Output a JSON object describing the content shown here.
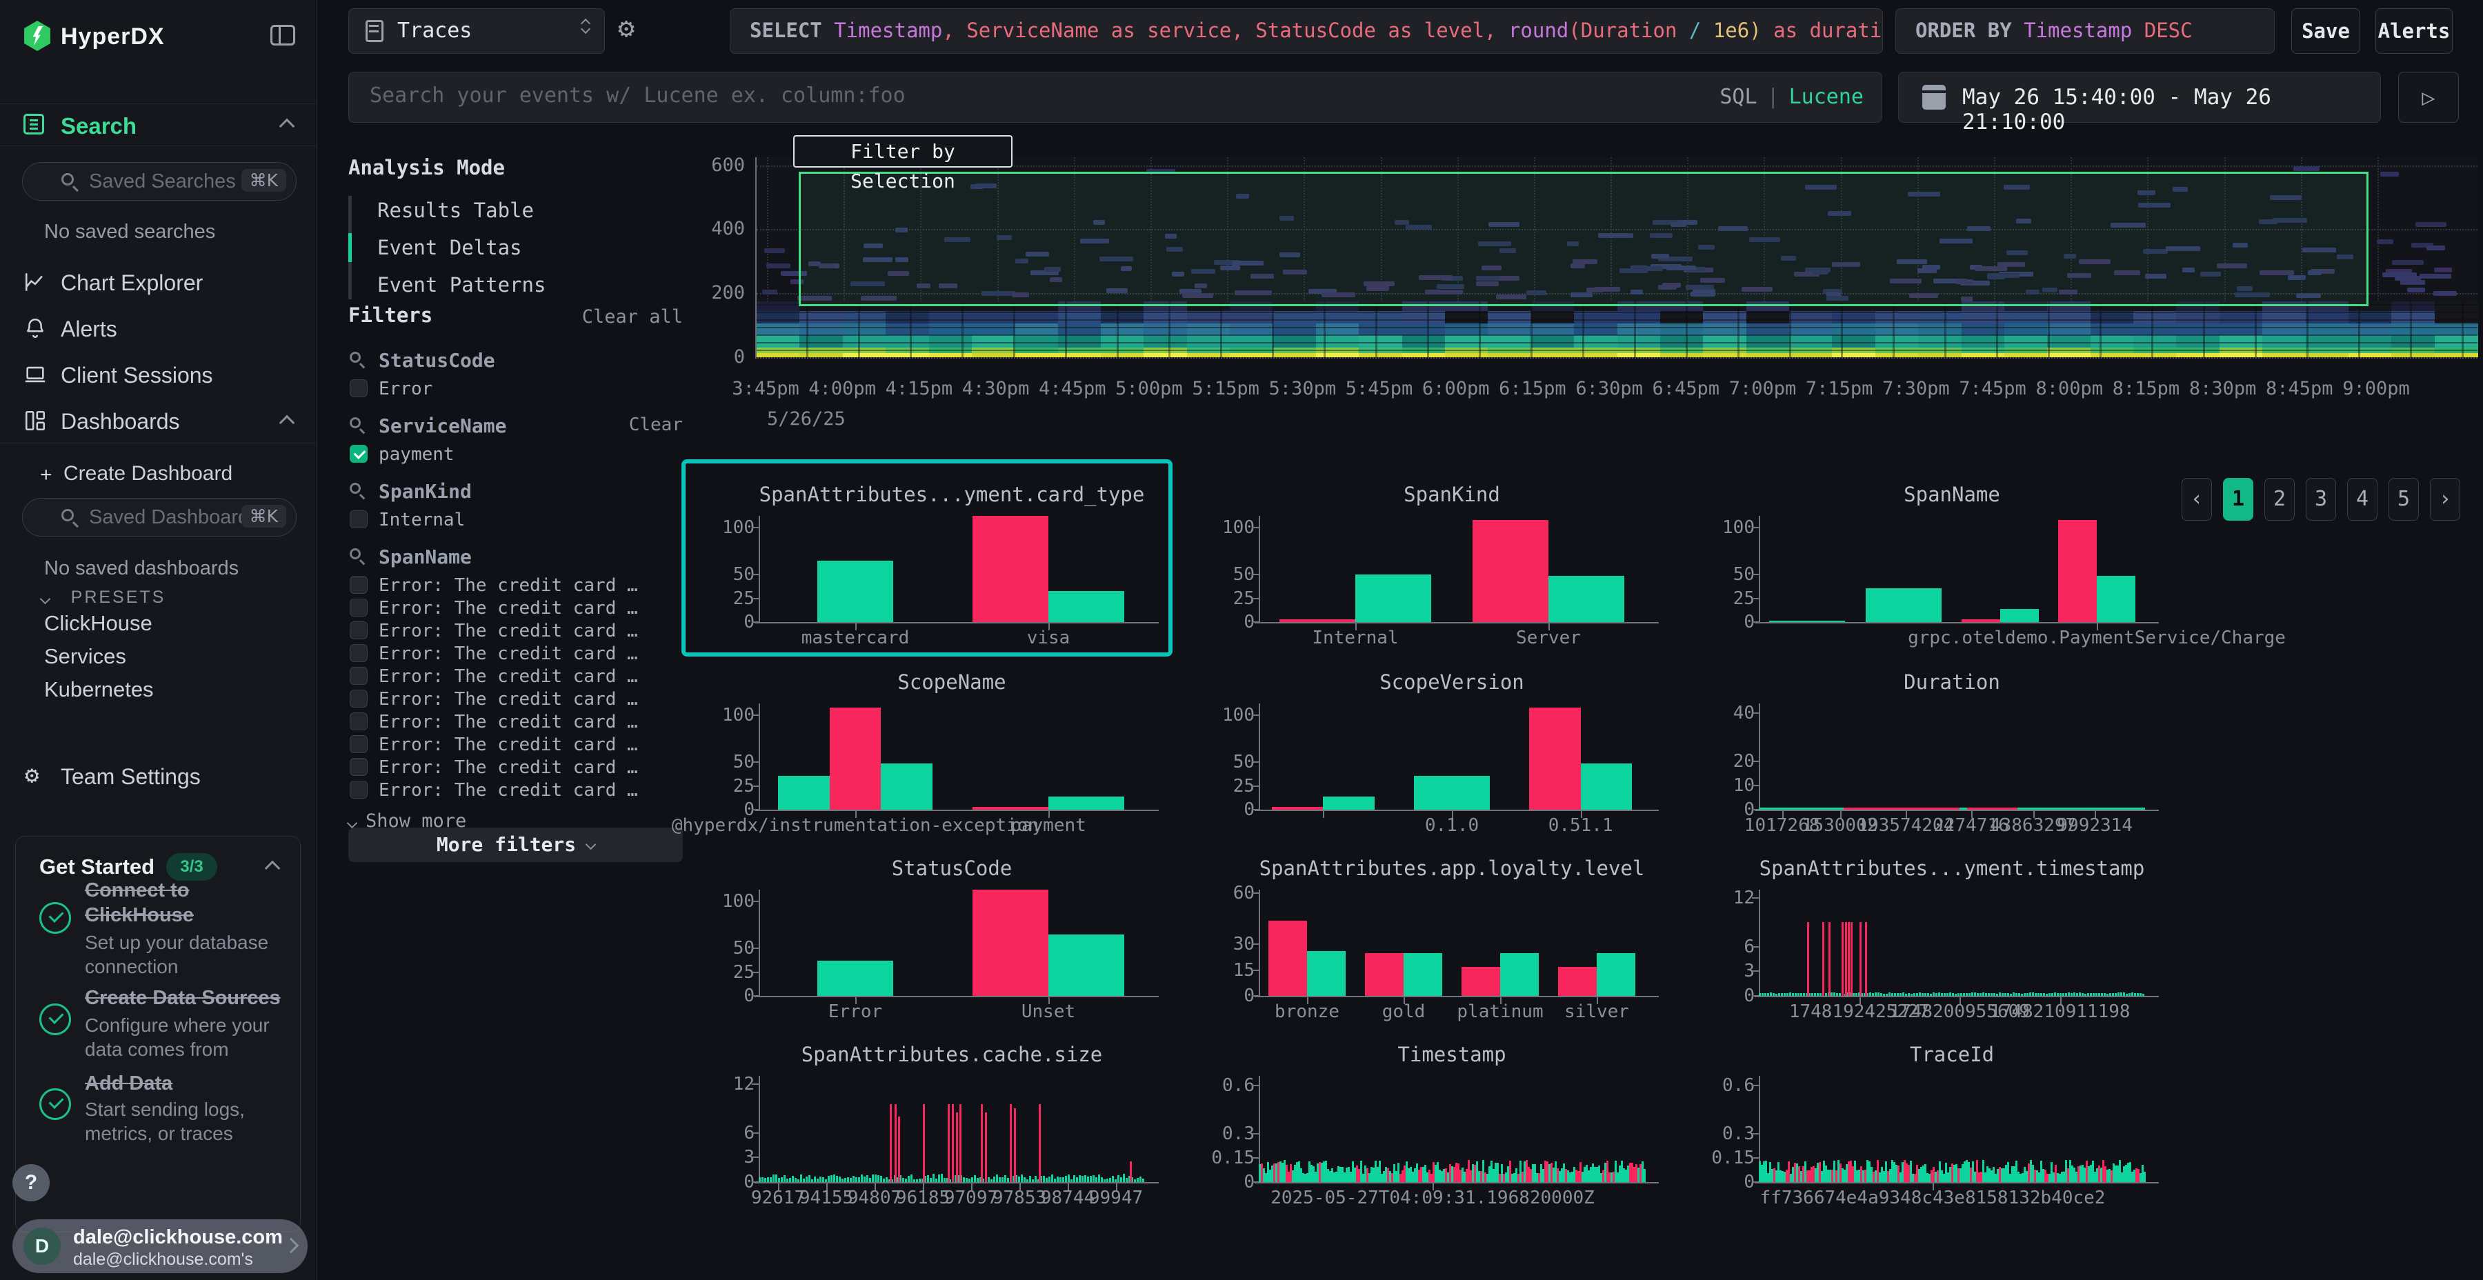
{
  "app": {
    "brand": "HyperDX"
  },
  "sidebar": {
    "search_section": "Search",
    "saved_searches_placeholder": "Saved Searches",
    "saved_searches_shortcut": "⌘K",
    "no_saved_searches": "No saved searches",
    "nav": [
      {
        "label": "Chart Explorer"
      },
      {
        "label": "Alerts"
      },
      {
        "label": "Client Sessions"
      },
      {
        "label": "Dashboards"
      }
    ],
    "create_dashboard_plus": "+",
    "create_dashboard": "Create Dashboard",
    "saved_dashboards_placeholder": "Saved Dashboards",
    "saved_dashboards_shortcut": "⌘K",
    "no_saved_dashboards": "No saved dashboards",
    "presets_label": "PRESETS",
    "presets": [
      "ClickHouse",
      "Services",
      "Kubernetes"
    ],
    "team_settings": "Team Settings",
    "get_started": {
      "title": "Get Started",
      "badge": "3/3",
      "items": [
        {
          "title": "Connect to ClickHouse",
          "desc": "Set up your database connection"
        },
        {
          "title": "Create Data Sources",
          "desc": "Configure where your data comes from"
        },
        {
          "title": "Add Data",
          "desc": "Start sending logs, metrics, or traces"
        }
      ]
    },
    "help_label": "?",
    "user": {
      "initial": "D",
      "email": "dale@clickhouse.com",
      "subtitle": "dale@clickhouse.com's"
    }
  },
  "topbar": {
    "source_select": "Traces",
    "sql_query": [
      {
        "t": "SELECT ",
        "c": "kw"
      },
      {
        "t": "Timestamp",
        "c": "purple"
      },
      {
        "t": ", ",
        "c": "red"
      },
      {
        "t": "ServiceName as service, StatusCode as level, ",
        "c": "red"
      },
      {
        "t": "round",
        "c": "purple"
      },
      {
        "t": "(",
        "c": "red"
      },
      {
        "t": "Duration ",
        "c": "red"
      },
      {
        "t": "/ ",
        "c": "cyan"
      },
      {
        "t": "1e6",
        "c": "yellow"
      },
      {
        "t": ") ",
        "c": "yellow"
      },
      {
        "t": "as duration, Span",
        "c": "red"
      }
    ],
    "order_by": [
      {
        "t": "ORDER BY ",
        "c": "kw"
      },
      {
        "t": "Timestamp ",
        "c": "purple"
      },
      {
        "t": "DESC",
        "c": "red"
      }
    ],
    "save_label": "Save",
    "alerts_label": "Alerts",
    "search_placeholder": "Search your events w/ Lucene ex. column:foo",
    "lang_sql": "SQL",
    "lang_divider": "|",
    "lang_lucene": "Lucene",
    "date_range": "May 26 15:40:00 - May 26 21:10:00",
    "live_icon": "▷"
  },
  "filters_panel": {
    "analysis_mode_label": "Analysis Mode",
    "modes": [
      {
        "label": "Results Table",
        "active": false
      },
      {
        "label": "Event Deltas",
        "active": true
      },
      {
        "label": "Event Patterns",
        "active": false
      }
    ],
    "filters_label": "Filters",
    "clear_all": "Clear all",
    "groups": [
      {
        "name": "StatusCode",
        "clear": false,
        "items": [
          {
            "label": "Error",
            "checked": false
          }
        ]
      },
      {
        "name": "ServiceName",
        "clear": true,
        "items": [
          {
            "label": "payment",
            "checked": true
          }
        ]
      },
      {
        "name": "SpanKind",
        "clear": false,
        "items": [
          {
            "label": "Internal",
            "checked": false
          }
        ]
      },
      {
        "name": "SpanName",
        "clear": false,
        "items": [
          {
            "label": "Error: The credit card …",
            "checked": false
          },
          {
            "label": "Error: The credit card …",
            "checked": false
          },
          {
            "label": "Error: The credit card …",
            "checked": false
          },
          {
            "label": "Error: The credit card …",
            "checked": false
          },
          {
            "label": "Error: The credit card …",
            "checked": false
          },
          {
            "label": "Error: The credit card …",
            "checked": false
          },
          {
            "label": "Error: The credit card …",
            "checked": false
          },
          {
            "label": "Error: The credit card …",
            "checked": false
          },
          {
            "label": "Error: The credit card …",
            "checked": false
          },
          {
            "label": "Error: The credit card …",
            "checked": false
          }
        ]
      }
    ],
    "show_more": "Show more",
    "more_filters": "More filters"
  },
  "pagination": {
    "prev": "‹",
    "pages": [
      "1",
      "2",
      "3",
      "4",
      "5"
    ],
    "active": "1",
    "next": "›"
  },
  "chart_data": [
    {
      "id": "events-heatmap",
      "type": "heatmap",
      "title": "",
      "yticks": [
        600,
        400,
        200,
        0
      ],
      "ylim": [
        0,
        625
      ],
      "x_ticks": [
        "3:45pm",
        "4:00pm",
        "4:15pm",
        "4:30pm",
        "4:45pm",
        "5:00pm",
        "5:15pm",
        "5:30pm",
        "5:45pm",
        "6:00pm",
        "6:15pm",
        "6:30pm",
        "6:45pm",
        "7:00pm",
        "7:15pm",
        "7:30pm",
        "7:45pm",
        "8:00pm",
        "8:15pm",
        "8:30pm",
        "8:45pm",
        "9:00pm"
      ],
      "x_date_label": "5/26/25",
      "selection": {
        "label": "Filter by Selection",
        "y_from": 160,
        "y_to": 580,
        "x_from": "4:00pm",
        "x_to": "8:55pm"
      },
      "bands": [
        {
          "v0": 0,
          "v1": 12,
          "colors": [
            "#e9e436",
            "#ddd82e",
            "#f1ec49",
            "#cfd32c"
          ]
        },
        {
          "v0": 12,
          "v1": 30,
          "colors": [
            "#46bd60",
            "#5ec455",
            "#2fb36a",
            "#8ccd45",
            "#3bb977"
          ]
        },
        {
          "v0": 30,
          "v1": 70,
          "colors": [
            "#1f9f89",
            "#23a78d",
            "#198f7e",
            "#27ad90",
            "#157f75"
          ]
        },
        {
          "v0": 70,
          "v1": 105,
          "colors": [
            "#26708f",
            "#2a6a93",
            "#1f5f88",
            "#2d7596",
            "#224f7e"
          ]
        },
        {
          "v0": 105,
          "v1": 145,
          "colors": [
            "#2c4a7c",
            "#2f4170",
            "#253a68",
            "#32497a",
            "#1d2f55",
            "#15161b"
          ]
        },
        {
          "v0": 145,
          "v1": 175,
          "colors": [
            "#2b2f58",
            "#15161b",
            "#262a50",
            "#15161b",
            "#1c1e38",
            "#15161b"
          ]
        }
      ],
      "scatter": {
        "seed": 7,
        "groups": [
          {
            "count": 120,
            "v_min": 175,
            "v_max": 300,
            "colors": [
              "#2b2e55",
              "#343768",
              "#3a2f5c"
            ]
          },
          {
            "count": 45,
            "v_min": 300,
            "v_max": 430,
            "colors": [
              "#2b2e55",
              "#323565"
            ]
          },
          {
            "count": 14,
            "v_min": 430,
            "v_max": 600,
            "colors": [
              "#2e3160"
            ]
          }
        ]
      }
    },
    {
      "id": "card-type",
      "type": "bar",
      "title": "SpanAttributes...yment.card_type",
      "highlight": true,
      "yticks": [
        "100",
        "50",
        "25",
        "0"
      ],
      "ymax": 112,
      "groups": [
        {
          "label": "mastercard",
          "tick": true,
          "bars": [
            {
              "c": "g",
              "v": 65
            }
          ]
        },
        {
          "label": "visa",
          "tick": true,
          "bars": [
            {
              "c": "r",
              "v": 112
            },
            {
              "c": "g",
              "v": 33
            }
          ]
        }
      ]
    },
    {
      "id": "span-kind",
      "type": "bar",
      "title": "SpanKind",
      "yticks": [
        "100",
        "50",
        "25",
        "0"
      ],
      "ymax": 112,
      "groups": [
        {
          "label": "Internal",
          "tick": true,
          "bars": [
            {
              "c": "r",
              "v": 3
            },
            {
              "c": "g",
              "v": 50
            }
          ]
        },
        {
          "label": "Server",
          "tick": true,
          "bars": [
            {
              "c": "r",
              "v": 108
            },
            {
              "c": "g",
              "v": 49
            }
          ]
        }
      ]
    },
    {
      "id": "span-name",
      "type": "bar",
      "title": "SpanName",
      "yticks": [
        "100",
        "50",
        "25",
        "0"
      ],
      "ymax": 112,
      "groups": [
        {
          "label": "",
          "tick": false,
          "bars": [
            {
              "c": "g",
              "v": 1
            }
          ]
        },
        {
          "label": "",
          "tick": false,
          "bars": [
            {
              "c": "g",
              "v": 36
            }
          ]
        },
        {
          "label": "",
          "tick": false,
          "bars": [
            {
              "c": "r",
              "v": 3
            },
            {
              "c": "g",
              "v": 14
            }
          ]
        },
        {
          "label": "grpc.oteldemo.PaymentService/Charge",
          "tick": true,
          "bars": [
            {
              "c": "r",
              "v": 108
            },
            {
              "c": "g",
              "v": 49
            }
          ]
        }
      ]
    },
    {
      "id": "scope-name",
      "type": "bar",
      "title": "ScopeName",
      "yticks": [
        "100",
        "50",
        "25",
        "0"
      ],
      "ymax": 112,
      "groups": [
        {
          "label": "@hyperdx/instrumentation-exception",
          "tick": true,
          "bars": [
            {
              "c": "g",
              "v": 36
            },
            {
              "c": "r",
              "v": 108
            },
            {
              "c": "g",
              "v": 49
            }
          ]
        },
        {
          "label": "payment",
          "tick": true,
          "bars": [
            {
              "c": "r",
              "v": 3
            },
            {
              "c": "g",
              "v": 14
            }
          ]
        }
      ]
    },
    {
      "id": "scope-version",
      "type": "bar",
      "title": "ScopeVersion",
      "yticks": [
        "100",
        "50",
        "25",
        "0"
      ],
      "ymax": 112,
      "groups": [
        {
          "label": "",
          "tick": true,
          "bars": [
            {
              "c": "r",
              "v": 3
            },
            {
              "c": "g",
              "v": 14
            }
          ]
        },
        {
          "label": "0.1.0",
          "tick": true,
          "bars": [
            {
              "c": "g",
              "v": 36
            }
          ]
        },
        {
          "label": "0.51.1",
          "tick": true,
          "bars": [
            {
              "c": "r",
              "v": 108
            },
            {
              "c": "g",
              "v": 49
            }
          ]
        }
      ]
    },
    {
      "id": "duration",
      "type": "strip",
      "title": "Duration",
      "yticks": [
        "40",
        "20",
        "10",
        "0"
      ],
      "ymax": 44,
      "baseline": {
        "color": "g",
        "v": 0.6
      },
      "red_segments": [
        {
          "x0": 22,
          "x1": 52
        },
        {
          "x0": 54,
          "x1": 67
        }
      ],
      "xlabels": [
        {
          "t": "1017268",
          "x": 6
        },
        {
          "t": "1530002",
          "x": 21
        },
        {
          "t": "193574204",
          "x": 38
        },
        {
          "t": "2274716",
          "x": 55
        },
        {
          "t": "43863297",
          "x": 71
        },
        {
          "t": "9992314",
          "x": 87
        }
      ]
    },
    {
      "id": "status-code",
      "type": "bar",
      "title": "StatusCode",
      "yticks": [
        "100",
        "50",
        "25",
        "0"
      ],
      "ymax": 112,
      "groups": [
        {
          "label": "Error",
          "tick": true,
          "bars": [
            {
              "c": "g",
              "v": 37
            }
          ]
        },
        {
          "label": "Unset",
          "tick": true,
          "bars": [
            {
              "c": "r",
              "v": 112
            },
            {
              "c": "g",
              "v": 65
            }
          ]
        }
      ]
    },
    {
      "id": "loyalty-level",
      "type": "bar",
      "title": "SpanAttributes.app.loyalty.level",
      "yticks": [
        "60",
        "30",
        "15",
        "0"
      ],
      "ymax": 62,
      "groups": [
        {
          "label": "bronze",
          "tick": true,
          "bars": [
            {
              "c": "r",
              "v": 44
            },
            {
              "c": "g",
              "v": 26
            }
          ]
        },
        {
          "label": "gold",
          "tick": true,
          "bars": [
            {
              "c": "r",
              "v": 25
            },
            {
              "c": "g",
              "v": 25
            }
          ]
        },
        {
          "label": "platinum",
          "tick": true,
          "bars": [
            {
              "c": "r",
              "v": 17
            },
            {
              "c": "g",
              "v": 25
            }
          ]
        },
        {
          "label": "silver",
          "tick": true,
          "bars": [
            {
              "c": "r",
              "v": 17
            },
            {
              "c": "g",
              "v": 25
            }
          ]
        }
      ]
    },
    {
      "id": "payment-timestamp",
      "type": "spikes",
      "title": "SpanAttributes...yment.timestamp",
      "yticks": [
        "12",
        "6",
        "3",
        "0"
      ],
      "ymax": 13,
      "comb": {
        "v": 0.35,
        "step": 4,
        "seed": 11,
        "red_ratio": 0
      },
      "red_spikes": [
        {
          "x": 12.5,
          "v": 9
        },
        {
          "x": 16.5,
          "v": 9
        },
        {
          "x": 18,
          "v": 9
        },
        {
          "x": 21.5,
          "v": 9
        },
        {
          "x": 22.3,
          "v": 9
        },
        {
          "x": 23,
          "v": 9
        },
        {
          "x": 23.8,
          "v": 9
        },
        {
          "x": 26,
          "v": 9
        },
        {
          "x": 27.5,
          "v": 9
        }
      ],
      "xlabels": [
        {
          "t": "1748192425227",
          "x": 26
        },
        {
          "t": "1748200955609",
          "x": 52
        },
        {
          "t": "1748210911198",
          "x": 78
        }
      ]
    },
    {
      "id": "cache-size",
      "type": "spikes",
      "title": "SpanAttributes.cache.size",
      "yticks": [
        "12",
        "6",
        "3",
        "0"
      ],
      "ymax": 13,
      "comb": {
        "v": 0.5,
        "step": 4,
        "seed": 21,
        "red_ratio": 0,
        "jitter": 0.5
      },
      "red_spikes": [
        {
          "x": 34,
          "v": 9.5
        },
        {
          "x": 35.2,
          "v": 9.5
        },
        {
          "x": 36,
          "v": 8
        },
        {
          "x": 42.5,
          "v": 9.5
        },
        {
          "x": 49,
          "v": 9.5
        },
        {
          "x": 50,
          "v": 9.5
        },
        {
          "x": 51,
          "v": 8.5
        },
        {
          "x": 52,
          "v": 9.5
        },
        {
          "x": 57.5,
          "v": 9.5
        },
        {
          "x": 58.5,
          "v": 8.5
        },
        {
          "x": 65,
          "v": 9.5
        },
        {
          "x": 66,
          "v": 9
        },
        {
          "x": 72.5,
          "v": 9.5
        },
        {
          "x": 96,
          "v": 2.5
        }
      ],
      "xlabels": [
        {
          "t": "92617",
          "x": 5
        },
        {
          "t": "94155",
          "x": 17.5
        },
        {
          "t": "94807",
          "x": 30
        },
        {
          "t": "96185",
          "x": 42.5
        },
        {
          "t": "97097",
          "x": 55
        },
        {
          "t": "97853",
          "x": 67.5
        },
        {
          "t": "98744",
          "x": 80
        },
        {
          "t": "99947",
          "x": 92.5
        }
      ]
    },
    {
      "id": "timestamp",
      "type": "dense",
      "title": "Timestamp",
      "yticks": [
        "0.6",
        "0.3",
        "0.15",
        "0"
      ],
      "ymax": 0.66,
      "dense": {
        "seed": 31,
        "red_ratio": 0.32,
        "v_min": 0.05,
        "v_max": 0.14,
        "step": 3
      },
      "xlabels": [
        {
          "t": "2025-05-27T04:09:31.196820000Z",
          "x": 45
        }
      ]
    },
    {
      "id": "trace-id",
      "type": "dense",
      "title": "TraceId",
      "yticks": [
        "0.6",
        "0.3",
        "0.15",
        "0"
      ],
      "ymax": 0.66,
      "dense": {
        "seed": 41,
        "red_ratio": 0.3,
        "v_min": 0.05,
        "v_max": 0.14,
        "step": 3
      },
      "xlabels": [
        {
          "t": "ff736674e4a9348c43e8158132b40ce2",
          "x": 45
        }
      ]
    }
  ]
}
